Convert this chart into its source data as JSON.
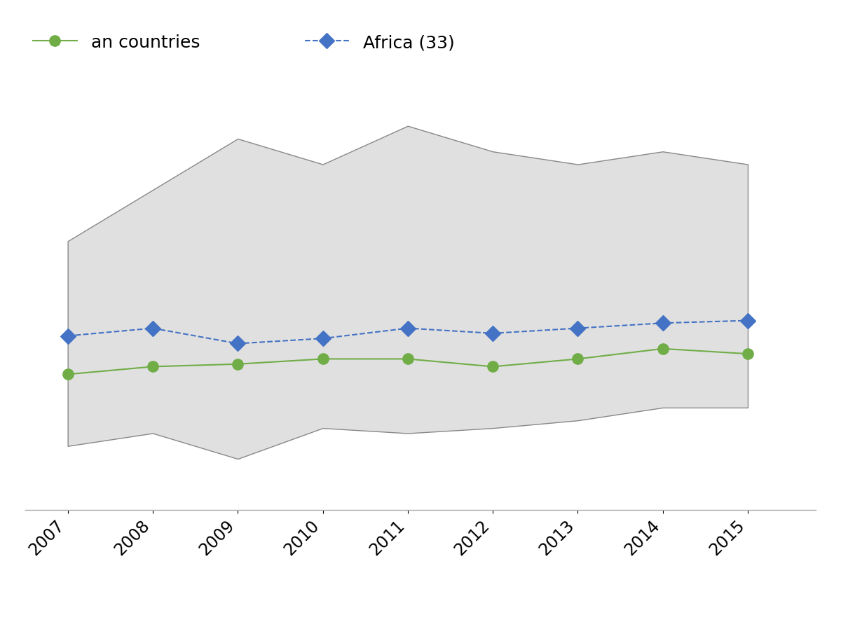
{
  "years": [
    2007,
    2008,
    2009,
    2010,
    2011,
    2012,
    2013,
    2014,
    2015
  ],
  "africa_line": [
    16.8,
    17.1,
    16.5,
    16.7,
    17.1,
    16.9,
    17.1,
    17.3,
    17.4
  ],
  "green_line": [
    15.3,
    15.6,
    15.7,
    15.9,
    15.9,
    15.6,
    15.9,
    16.3,
    16.1
  ],
  "band_upper": [
    20.5,
    22.5,
    24.5,
    23.5,
    25.0,
    24.0,
    23.5,
    24.0,
    23.5
  ],
  "band_lower": [
    12.5,
    13.0,
    12.0,
    13.2,
    13.0,
    13.2,
    13.5,
    14.0,
    14.0
  ],
  "band_color": "#e0e0e0",
  "band_edge_color": "#888888",
  "africa_line_color": "#4472c4",
  "africa_marker_color": "#4472c4",
  "africa_marker": "D",
  "africa_linestyle": "--",
  "green_line_color": "#70ad47",
  "green_marker_color": "#70ad47",
  "green_marker": "o",
  "green_linestyle": "-",
  "legend_africa_label": "Africa (33)",
  "legend_green_label": "an countries",
  "ylim_min": 10.0,
  "ylim_max": 27.0,
  "xlim_min": 2006.5,
  "xlim_max": 2015.8,
  "tick_rotation": 45,
  "background_color": "#ffffff",
  "line_width": 1.5,
  "marker_size": 11,
  "legend_fontsize": 18,
  "tick_fontsize": 17
}
